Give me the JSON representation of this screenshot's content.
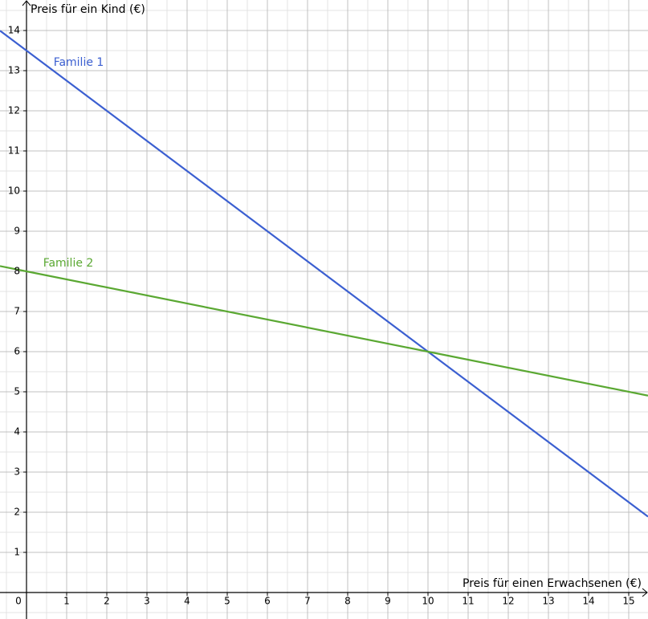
{
  "chart_data": {
    "type": "line",
    "xlabel": "Preis für einen Erwachsenen (€)",
    "ylabel": "Preis für ein Kind (€)",
    "x": [
      -0.66,
      0,
      10,
      15.48
    ],
    "series": [
      {
        "name": "Familie 1",
        "color": "#3b5fd1",
        "values": [
          13.995,
          13.5,
          6,
          1.89
        ]
      },
      {
        "name": "Familie 2",
        "color": "#5aa832",
        "values": [
          8.132,
          8,
          6,
          4.904
        ]
      }
    ],
    "xlim": [
      -0.66,
      15.48
    ],
    "ylim": [
      -0.66,
      14.76
    ],
    "xticks": [
      0,
      1,
      2,
      3,
      4,
      5,
      6,
      7,
      8,
      9,
      10,
      11,
      12,
      13,
      14,
      15
    ],
    "yticks": [
      1,
      2,
      3,
      4,
      5,
      6,
      7,
      8,
      9,
      10,
      11,
      12,
      13,
      14
    ],
    "grid": true
  }
}
